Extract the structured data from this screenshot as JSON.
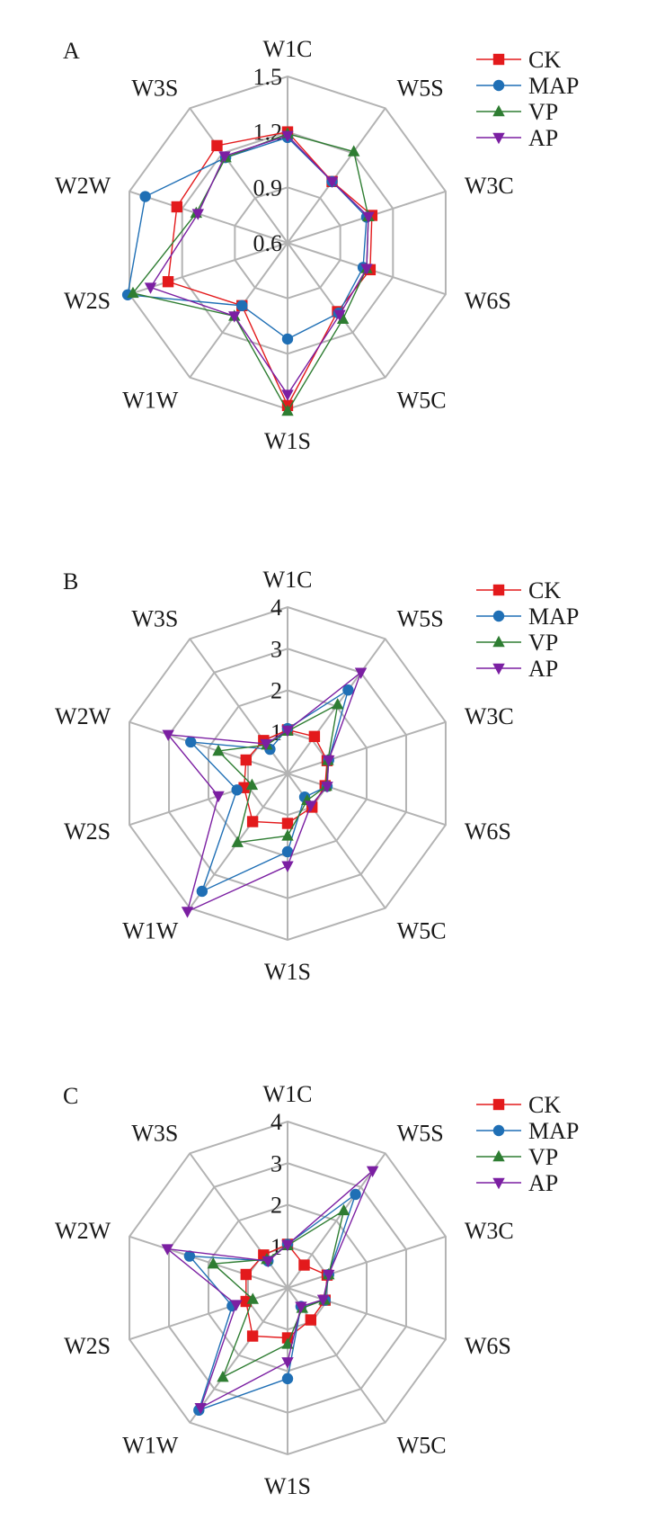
{
  "chart_data": [
    {
      "type": "radar",
      "panel_label": "A",
      "categories": [
        "W1C",
        "W5S",
        "W3C",
        "W6S",
        "W5C",
        "W1S",
        "W1W",
        "W2S",
        "W2W",
        "W3S"
      ],
      "rmin": 0.6,
      "rmax": 1.5,
      "rings": [
        0.6,
        0.9,
        1.2,
        1.5
      ],
      "ticks": [
        "0.6",
        "0.9",
        "1.2",
        "1.5"
      ],
      "series": [
        {
          "name": "CK",
          "values": [
            1.2,
            1.01,
            1.08,
            1.07,
            1.06,
            1.48,
            1.02,
            1.28,
            1.23,
            1.25
          ]
        },
        {
          "name": "MAP",
          "values": [
            1.17,
            1.01,
            1.05,
            1.03,
            1.07,
            1.12,
            1.02,
            1.51,
            1.41,
            1.17
          ]
        },
        {
          "name": "VP",
          "values": [
            1.19,
            1.21,
            1.06,
            1.05,
            1.11,
            1.51,
            1.09,
            1.48,
            1.12,
            1.17
          ]
        },
        {
          "name": "AP",
          "values": [
            1.18,
            1.01,
            1.06,
            1.05,
            1.08,
            1.42,
            1.09,
            1.38,
            1.11,
            1.18
          ]
        }
      ],
      "legend_position": "top-right"
    },
    {
      "type": "radar",
      "panel_label": "B",
      "categories": [
        "W1C",
        "W5S",
        "W3C",
        "W6S",
        "W5C",
        "W1S",
        "W1W",
        "W2S",
        "W2W",
        "W3S"
      ],
      "rmin": 0,
      "rmax": 4,
      "rings": [
        1,
        2,
        3,
        4
      ],
      "ticks": [
        "1",
        "2",
        "3",
        "4"
      ],
      "series": [
        {
          "name": "CK",
          "values": [
            1.05,
            1.1,
            1.0,
            0.95,
            1.0,
            1.2,
            1.43,
            1.1,
            1.05,
            0.98
          ]
        },
        {
          "name": "MAP",
          "values": [
            1.08,
            2.48,
            1.04,
            1.0,
            0.7,
            1.88,
            3.5,
            1.28,
            2.45,
            0.72
          ]
        },
        {
          "name": "VP",
          "values": [
            1.02,
            2.05,
            1.02,
            0.98,
            0.8,
            1.5,
            2.05,
            0.9,
            1.75,
            0.85
          ]
        },
        {
          "name": "AP",
          "values": [
            1.04,
            3.0,
            1.04,
            1.0,
            0.95,
            2.22,
            4.1,
            1.75,
            3.02,
            0.88
          ]
        }
      ],
      "legend_position": "top-right"
    },
    {
      "type": "radar",
      "panel_label": "C",
      "categories": [
        "W1C",
        "W5S",
        "W3C",
        "W6S",
        "W5C",
        "W1S",
        "W1W",
        "W2S",
        "W2W",
        "W3S"
      ],
      "rmin": 0,
      "rmax": 4,
      "rings": [
        1,
        2,
        3,
        4
      ],
      "ticks": [
        "1",
        "2",
        "3",
        "4"
      ],
      "series": [
        {
          "name": "CK",
          "values": [
            1.05,
            0.68,
            1.0,
            0.95,
            0.95,
            1.2,
            1.43,
            1.05,
            1.05,
            0.98
          ]
        },
        {
          "name": "MAP",
          "values": [
            1.05,
            2.78,
            1.04,
            0.95,
            0.55,
            2.18,
            3.63,
            1.4,
            2.48,
            0.8
          ]
        },
        {
          "name": "VP",
          "values": [
            1.02,
            2.3,
            1.04,
            0.93,
            0.6,
            1.35,
            2.65,
            0.88,
            1.88,
            0.85
          ]
        },
        {
          "name": "AP",
          "values": [
            1.04,
            3.48,
            1.04,
            0.9,
            0.55,
            1.78,
            3.56,
            1.3,
            3.04,
            0.8
          ]
        }
      ],
      "legend_position": "top-right"
    }
  ],
  "colors": {
    "CK": "#e31a1c",
    "MAP": "#1f6fb5",
    "VP": "#2e7d32",
    "AP": "#7b1fa2",
    "grid": "#b3b3b3"
  },
  "markers": {
    "CK": "square",
    "MAP": "circle",
    "VP": "triangle-up",
    "AP": "triangle-down"
  }
}
